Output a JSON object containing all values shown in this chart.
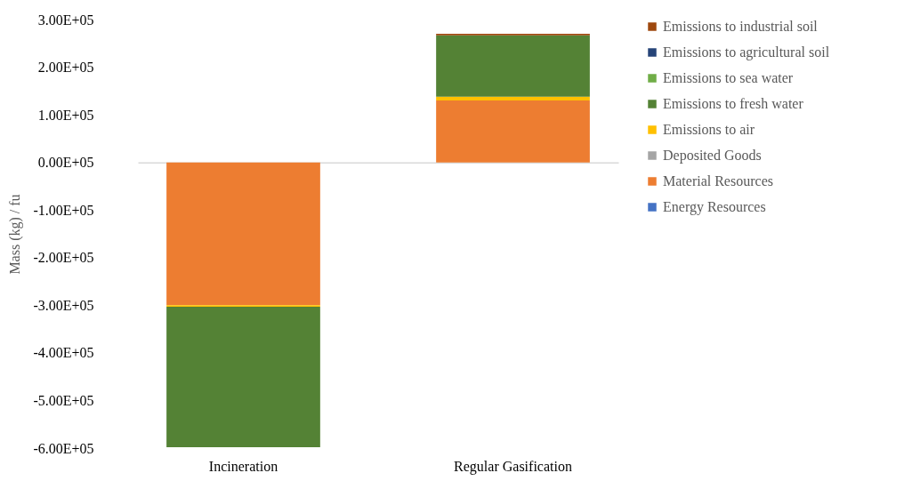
{
  "chart_data": {
    "type": "bar",
    "stacked": true,
    "ylabel": "Mass (kg) / fu",
    "categories": [
      "Incineration",
      "Regular Gasification"
    ],
    "series": [
      {
        "name": "Energy Resources",
        "color": "#4472c4",
        "values": [
          0,
          0
        ]
      },
      {
        "name": "Material Resources",
        "color": "#ed7d31",
        "values": [
          -300000,
          130000
        ]
      },
      {
        "name": "Deposited Goods",
        "color": "#a5a5a5",
        "values": [
          0,
          0
        ]
      },
      {
        "name": "Emissions to air",
        "color": "#ffc000",
        "values": [
          -3000,
          8000
        ]
      },
      {
        "name": "Emissions to fresh water",
        "color": "#548235",
        "values": [
          -295000,
          129000
        ]
      },
      {
        "name": "Emissions to sea water",
        "color": "#70ad47",
        "values": [
          0,
          0
        ]
      },
      {
        "name": "Emissions to agricultural soil",
        "color": "#264478",
        "values": [
          0,
          0
        ]
      },
      {
        "name": "Emissions to industrial soil",
        "color": "#9e480e",
        "values": [
          0,
          3000
        ]
      }
    ],
    "ylim": [
      -600000,
      300000
    ],
    "yticks": [
      {
        "value": 300000,
        "label": "3.00E+05"
      },
      {
        "value": 200000,
        "label": "2.00E+05"
      },
      {
        "value": 100000,
        "label": "1.00E+05"
      },
      {
        "value": 0,
        "label": "0.00E+05"
      },
      {
        "value": -100000,
        "label": "-1.00E+05"
      },
      {
        "value": -200000,
        "label": "-2.00E+05"
      },
      {
        "value": -300000,
        "label": "-3.00E+05"
      },
      {
        "value": -400000,
        "label": "-4.00E+05"
      },
      {
        "value": -500000,
        "label": "-5.00E+05"
      },
      {
        "value": -600000,
        "label": "-6.00E+05"
      }
    ],
    "legend": "right"
  }
}
